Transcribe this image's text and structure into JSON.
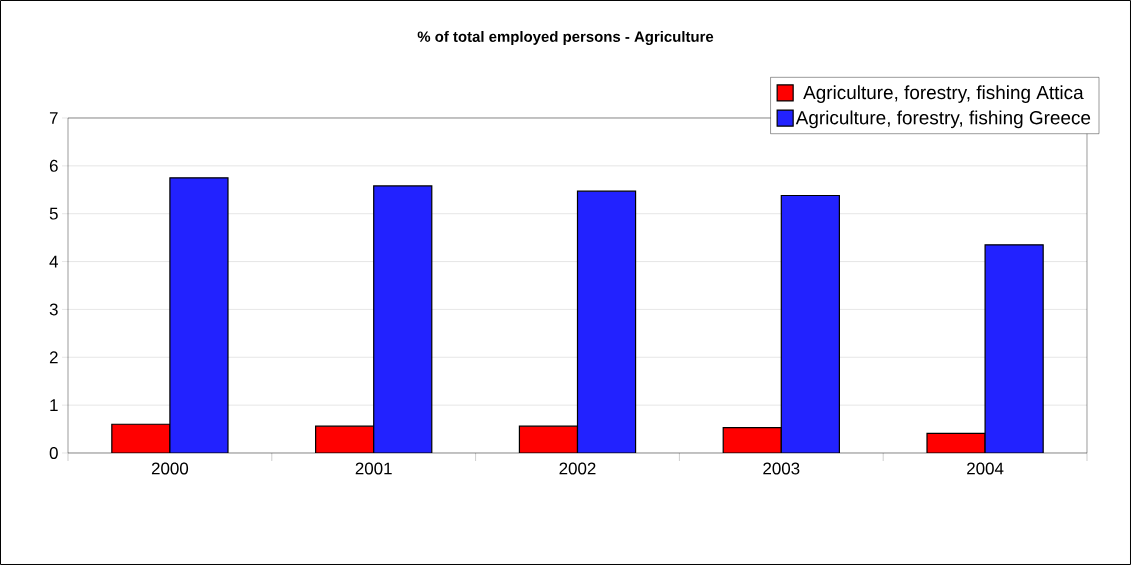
{
  "chart_data": {
    "type": "bar",
    "title": "% of total employed persons - Agriculture",
    "categories": [
      "2000",
      "2001",
      "2002",
      "2003",
      "2004"
    ],
    "series": [
      {
        "name": "Agriculture, forestry, fishing Attica",
        "color": "#ff0000",
        "values": [
          0.6,
          0.56,
          0.56,
          0.53,
          0.41
        ]
      },
      {
        "name": "Agriculture, forestry, fishing Greece",
        "color": "#2222ff",
        "values": [
          5.75,
          5.58,
          5.47,
          5.38,
          4.35
        ]
      }
    ],
    "ylim": [
      0,
      7
    ],
    "yticks": [
      0,
      1,
      2,
      3,
      4,
      5,
      6,
      7
    ],
    "grid": "y",
    "legend": "top right"
  }
}
